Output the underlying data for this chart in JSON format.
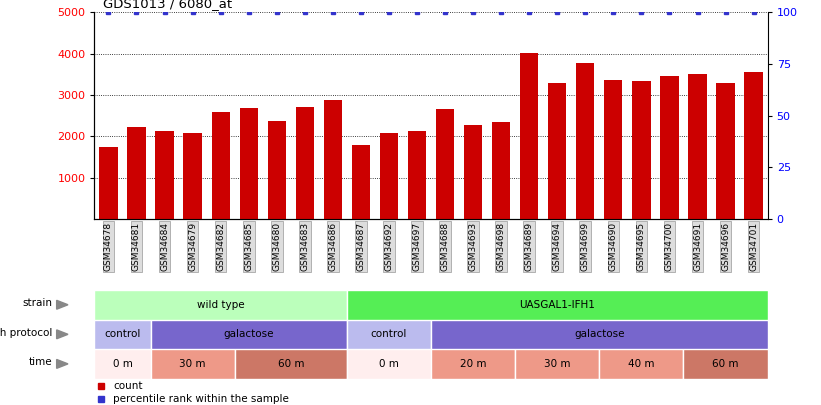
{
  "title": "GDS1013 / 6080_at",
  "samples": [
    "GSM34678",
    "GSM34681",
    "GSM34684",
    "GSM34679",
    "GSM34682",
    "GSM34685",
    "GSM34680",
    "GSM34683",
    "GSM34686",
    "GSM34687",
    "GSM34692",
    "GSM34697",
    "GSM34688",
    "GSM34693",
    "GSM34698",
    "GSM34689",
    "GSM34694",
    "GSM34699",
    "GSM34690",
    "GSM34695",
    "GSM34700",
    "GSM34691",
    "GSM34696",
    "GSM34701"
  ],
  "counts": [
    1750,
    2230,
    2120,
    2090,
    2580,
    2680,
    2380,
    2720,
    2880,
    1800,
    2080,
    2120,
    2650,
    2280,
    2340,
    4020,
    3300,
    3780,
    3360,
    3330,
    3460,
    3500,
    3300,
    3560
  ],
  "percentile": [
    100,
    100,
    100,
    100,
    100,
    100,
    100,
    100,
    100,
    100,
    100,
    100,
    100,
    100,
    100,
    100,
    100,
    100,
    100,
    100,
    100,
    100,
    100,
    100
  ],
  "bar_color": "#cc0000",
  "percentile_color": "#3333cc",
  "ylim_left": [
    0,
    5000
  ],
  "ylim_right": [
    0,
    100
  ],
  "yticks_left": [
    1000,
    2000,
    3000,
    4000,
    5000
  ],
  "yticks_right": [
    0,
    25,
    50,
    75,
    100
  ],
  "strain_row": {
    "label": "strain",
    "segments": [
      {
        "text": "wild type",
        "start": 0,
        "end": 9,
        "color": "#bbffbb"
      },
      {
        "text": "UASGAL1-IFH1",
        "start": 9,
        "end": 24,
        "color": "#55ee55"
      }
    ]
  },
  "growth_row": {
    "label": "growth protocol",
    "segments": [
      {
        "text": "control",
        "start": 0,
        "end": 2,
        "color": "#bbbbee"
      },
      {
        "text": "galactose",
        "start": 2,
        "end": 9,
        "color": "#7766cc"
      },
      {
        "text": "control",
        "start": 9,
        "end": 12,
        "color": "#bbbbee"
      },
      {
        "text": "galactose",
        "start": 12,
        "end": 24,
        "color": "#7766cc"
      }
    ]
  },
  "time_row": {
    "label": "time",
    "segments": [
      {
        "text": "0 m",
        "start": 0,
        "end": 2,
        "color": "#ffeeee"
      },
      {
        "text": "30 m",
        "start": 2,
        "end": 5,
        "color": "#ee9988"
      },
      {
        "text": "60 m",
        "start": 5,
        "end": 9,
        "color": "#cc7766"
      },
      {
        "text": "0 m",
        "start": 9,
        "end": 12,
        "color": "#ffeeee"
      },
      {
        "text": "20 m",
        "start": 12,
        "end": 15,
        "color": "#ee9988"
      },
      {
        "text": "30 m",
        "start": 15,
        "end": 18,
        "color": "#ee9988"
      },
      {
        "text": "40 m",
        "start": 18,
        "end": 21,
        "color": "#ee9988"
      },
      {
        "text": "60 m",
        "start": 21,
        "end": 24,
        "color": "#cc7766"
      }
    ]
  },
  "xtick_bg": "#dddddd",
  "xtick_border": "#999999"
}
